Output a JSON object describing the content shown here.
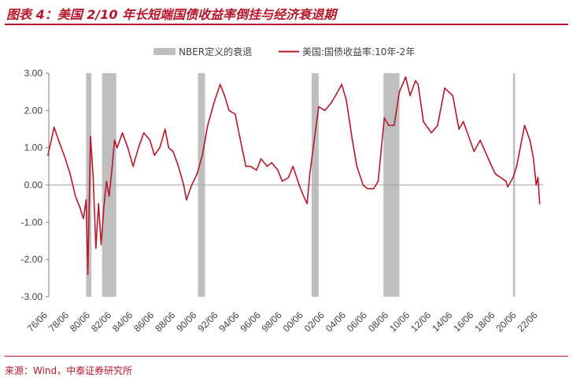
{
  "title": "图表 4：美国 2/10 年长短端国债收益率倒挂与经济衰退期",
  "source": "来源：Wind，中泰证券研究所",
  "colors": {
    "accent": "#b7172a",
    "recession": "#bfbfbf",
    "series": "#b7172a"
  },
  "chart_data": {
    "type": "line",
    "title": "",
    "xlabel": "",
    "ylabel": "",
    "ylim": [
      -3.0,
      3.0
    ],
    "yticks": [
      "3.00",
      "2.00",
      "1.00",
      "0.00",
      "-1.00",
      "-2.00",
      "-3.00"
    ],
    "xticks": [
      "76/06",
      "78/06",
      "80/06",
      "82/06",
      "84/06",
      "86/06",
      "88/06",
      "90/06",
      "92/06",
      "94/06",
      "96/06",
      "98/06",
      "00/06",
      "02/06",
      "04/06",
      "06/06",
      "08/06",
      "10/06",
      "12/06",
      "14/06",
      "16/06",
      "18/06",
      "20/06",
      "22/06"
    ],
    "legend": {
      "position": "top-center",
      "recession_label": "NBER定义的衰退",
      "series_label": "美国:国债收益率:10年-2年"
    },
    "recessions": [
      {
        "start": "1980-01",
        "end": "1980-07"
      },
      {
        "start": "1981-07",
        "end": "1982-11"
      },
      {
        "start": "1990-07",
        "end": "1991-03"
      },
      {
        "start": "2001-03",
        "end": "2001-11"
      },
      {
        "start": "2007-12",
        "end": "2009-06"
      },
      {
        "start": "2020-02",
        "end": "2020-04"
      }
    ],
    "series": [
      {
        "name": "美国:国债收益率:10年-2年",
        "points": [
          [
            "1976-06",
            0.8
          ],
          [
            "1977-01",
            1.55
          ],
          [
            "1977-06",
            1.2
          ],
          [
            "1978-01",
            0.75
          ],
          [
            "1978-07",
            0.3
          ],
          [
            "1979-01",
            -0.3
          ],
          [
            "1979-06",
            -0.6
          ],
          [
            "1979-10",
            -0.9
          ],
          [
            "1980-01",
            -0.4
          ],
          [
            "1980-03",
            -2.4
          ],
          [
            "1980-06",
            1.3
          ],
          [
            "1980-09",
            0.2
          ],
          [
            "1980-12",
            -1.7
          ],
          [
            "1981-03",
            -0.5
          ],
          [
            "1981-06",
            -1.6
          ],
          [
            "1981-09",
            -0.6
          ],
          [
            "1981-12",
            0.1
          ],
          [
            "1982-03",
            -0.3
          ],
          [
            "1982-06",
            0.4
          ],
          [
            "1982-09",
            1.2
          ],
          [
            "1982-12",
            1.0
          ],
          [
            "1983-06",
            1.4
          ],
          [
            "1983-12",
            1.0
          ],
          [
            "1984-06",
            0.5
          ],
          [
            "1984-12",
            1.0
          ],
          [
            "1985-06",
            1.4
          ],
          [
            "1986-01",
            1.2
          ],
          [
            "1986-06",
            0.8
          ],
          [
            "1986-12",
            1.0
          ],
          [
            "1987-06",
            1.5
          ],
          [
            "1987-10",
            1.0
          ],
          [
            "1988-03",
            0.9
          ],
          [
            "1988-09",
            0.5
          ],
          [
            "1989-03",
            0.0
          ],
          [
            "1989-06",
            -0.4
          ],
          [
            "1989-12",
            0.0
          ],
          [
            "1990-06",
            0.3
          ],
          [
            "1990-12",
            0.8
          ],
          [
            "1991-06",
            1.6
          ],
          [
            "1992-01",
            2.2
          ],
          [
            "1992-08",
            2.7
          ],
          [
            "1993-01",
            2.4
          ],
          [
            "1993-06",
            2.0
          ],
          [
            "1994-01",
            1.9
          ],
          [
            "1994-06",
            1.3
          ],
          [
            "1995-01",
            0.5
          ],
          [
            "1995-06",
            0.5
          ],
          [
            "1996-01",
            0.4
          ],
          [
            "1996-06",
            0.7
          ],
          [
            "1997-01",
            0.5
          ],
          [
            "1997-06",
            0.6
          ],
          [
            "1998-01",
            0.4
          ],
          [
            "1998-06",
            0.1
          ],
          [
            "1999-01",
            0.2
          ],
          [
            "1999-06",
            0.5
          ],
          [
            "2000-01",
            0.0
          ],
          [
            "2000-06",
            -0.3
          ],
          [
            "2000-10",
            -0.5
          ],
          [
            "2001-01",
            0.3
          ],
          [
            "2001-06",
            1.2
          ],
          [
            "2001-11",
            2.1
          ],
          [
            "2002-06",
            2.0
          ],
          [
            "2003-01",
            2.2
          ],
          [
            "2003-06",
            2.4
          ],
          [
            "2004-01",
            2.7
          ],
          [
            "2004-06",
            2.3
          ],
          [
            "2005-01",
            1.2
          ],
          [
            "2005-06",
            0.5
          ],
          [
            "2006-01",
            0.0
          ],
          [
            "2006-06",
            -0.1
          ],
          [
            "2007-01",
            -0.1
          ],
          [
            "2007-06",
            0.1
          ],
          [
            "2008-01",
            1.8
          ],
          [
            "2008-06",
            1.6
          ],
          [
            "2008-12",
            1.6
          ],
          [
            "2009-06",
            2.5
          ],
          [
            "2010-01",
            2.9
          ],
          [
            "2010-06",
            2.4
          ],
          [
            "2010-12",
            2.8
          ],
          [
            "2011-03",
            2.7
          ],
          [
            "2011-09",
            1.7
          ],
          [
            "2012-06",
            1.4
          ],
          [
            "2013-01",
            1.6
          ],
          [
            "2013-09",
            2.6
          ],
          [
            "2014-06",
            2.4
          ],
          [
            "2015-01",
            1.5
          ],
          [
            "2015-06",
            1.7
          ],
          [
            "2016-06",
            0.9
          ],
          [
            "2017-01",
            1.2
          ],
          [
            "2017-12",
            0.6
          ],
          [
            "2018-06",
            0.3
          ],
          [
            "2019-06",
            0.1
          ],
          [
            "2019-08",
            -0.05
          ],
          [
            "2020-02",
            0.2
          ],
          [
            "2020-06",
            0.5
          ],
          [
            "2021-03",
            1.6
          ],
          [
            "2021-09",
            1.2
          ],
          [
            "2022-01",
            0.7
          ],
          [
            "2022-04",
            0.0
          ],
          [
            "2022-06",
            0.2
          ],
          [
            "2022-08",
            -0.5
          ]
        ]
      }
    ]
  }
}
